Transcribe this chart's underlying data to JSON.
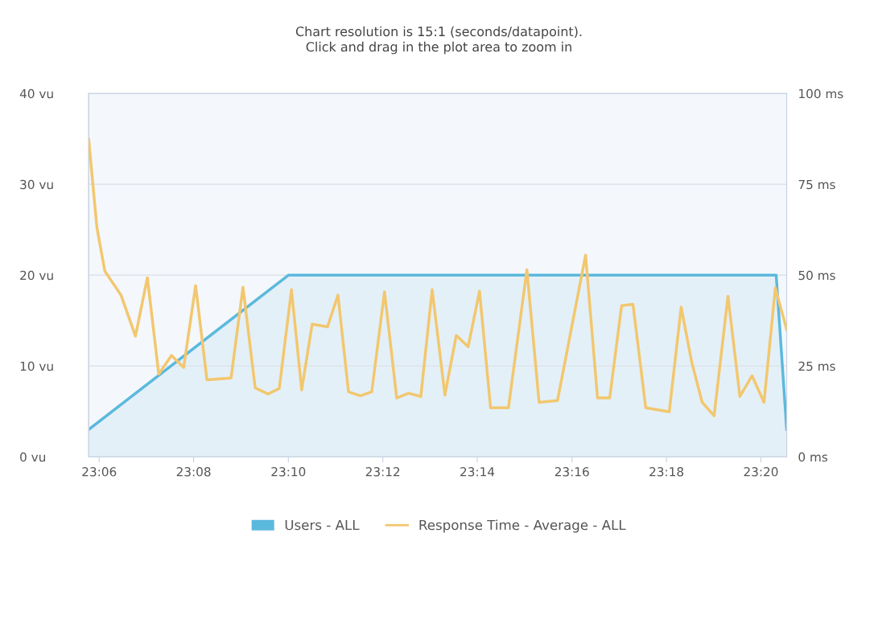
{
  "chart_data": {
    "type": "line",
    "title": "Chart resolution is 15:1 (seconds/datapoint).\nClick and drag in the plot area to zoom in",
    "series": [
      {
        "name": "Users - ALL",
        "type": "area",
        "color": "#5bb9dd",
        "x": [
          23.0963,
          23.1667,
          23.3387,
          23.3424
        ],
        "values": [
          3,
          20,
          20,
          3
        ]
      },
      {
        "name": "Response Time - Average - ALL",
        "axis": "y2",
        "color": "#f2c76e",
        "x": [
          23.0963,
          23.0992,
          23.102,
          23.1077,
          23.1128,
          23.117,
          23.121,
          23.1255,
          23.1298,
          23.134,
          23.138,
          23.1465,
          23.1507,
          23.155,
          23.1595,
          23.1635,
          23.1678,
          23.1714,
          23.1751,
          23.1805,
          23.1842,
          23.1879,
          23.1921,
          23.1961,
          23.2006,
          23.2049,
          23.2091,
          23.2134,
          23.2174,
          23.2219,
          23.2259,
          23.2301,
          23.2341,
          23.238,
          23.2443,
          23.2508,
          23.2551,
          23.2616,
          23.2715,
          23.2757,
          23.28,
          23.2842,
          23.2882,
          23.2927,
          23.301,
          23.3052,
          23.3089,
          23.3126,
          23.3168,
          23.3217,
          23.3259,
          23.3302,
          23.3344,
          23.3384,
          23.3424
        ],
        "values": [
          87.4,
          63.1,
          51.1,
          44.5,
          33.2,
          49.3,
          22.8,
          27.9,
          24.6,
          47.1,
          21.2,
          21.7,
          46.7,
          19.0,
          17.3,
          18.8,
          46.0,
          18.4,
          36.5,
          35.8,
          44.5,
          17.9,
          16.8,
          17.9,
          45.4,
          16.2,
          17.5,
          16.6,
          46.0,
          17.0,
          33.4,
          30.3,
          45.6,
          13.5,
          13.5,
          51.5,
          15.0,
          15.5,
          55.5,
          16.2,
          16.2,
          41.6,
          42.0,
          13.5,
          12.4,
          41.2,
          26.1,
          15.0,
          11.3,
          44.2,
          16.6,
          22.3,
          15.0,
          46.5,
          35.0
        ]
      }
    ],
    "xlim": [
      23.0963,
      23.3424
    ],
    "xticks": [
      {
        "value": 23.1,
        "label": "23:06"
      },
      {
        "value": 23.1333,
        "label": "23:08"
      },
      {
        "value": 23.1667,
        "label": "23:10"
      },
      {
        "value": 23.2,
        "label": "23:12"
      },
      {
        "value": 23.2333,
        "label": "23:14"
      },
      {
        "value": 23.2667,
        "label": "23:16"
      },
      {
        "value": 23.3,
        "label": "23:18"
      },
      {
        "value": 23.3333,
        "label": "23:20"
      }
    ],
    "ylim": [
      0,
      40
    ],
    "yticks": [
      {
        "value": 0,
        "label": "0 vu"
      },
      {
        "value": 10,
        "label": "10 vu"
      },
      {
        "value": 20,
        "label": "20 vu"
      },
      {
        "value": 30,
        "label": "30 vu"
      },
      {
        "value": 40,
        "label": "40 vu"
      }
    ],
    "y2lim": [
      0,
      100
    ],
    "y2ticks": [
      {
        "value": 0,
        "label": "0 ms"
      },
      {
        "value": 25,
        "label": "25 ms"
      },
      {
        "value": 50,
        "label": "50 ms"
      },
      {
        "value": 75,
        "label": "75 ms"
      },
      {
        "value": 100,
        "label": "100 ms"
      }
    ],
    "grid": "y",
    "legend": "bottom",
    "line_style": "solid"
  }
}
